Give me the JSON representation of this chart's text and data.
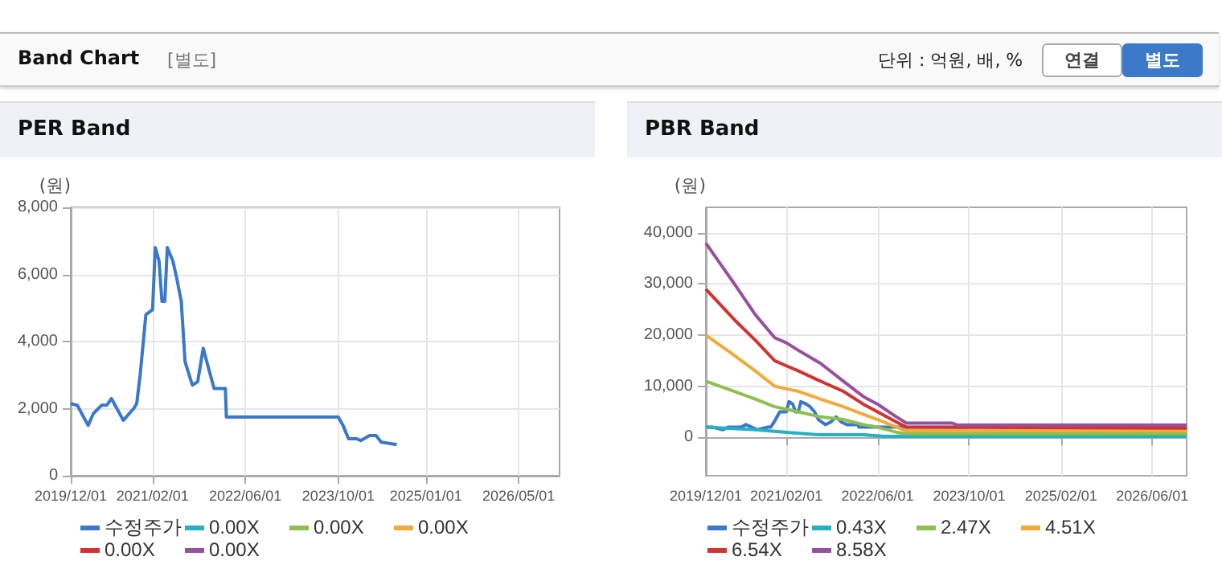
{
  "chart_data": [
    {
      "type": "other",
      "title": "Band Chart",
      "annotations": [
        "[별도]",
        "단위 : 억원, 배, %",
        "연결",
        "별도"
      ]
    },
    {
      "type": "line",
      "title": "PER Band",
      "ylabel": "(원)",
      "xlim": [
        "2019-12-01",
        "2026-12-01"
      ],
      "xticks": [
        {
          "value": "2019-12-01",
          "label": "2019/12/01"
        },
        {
          "value": "2021-02-01",
          "label": "2021/02/01"
        },
        {
          "value": "2022-06-01",
          "label": "2022/06/01"
        },
        {
          "value": "2023-10-01",
          "label": "2023/10/01"
        },
        {
          "value": "2025-01-01",
          "label": "2025/01/01"
        },
        {
          "value": "2026-05-01",
          "label": "2026/05/01"
        }
      ],
      "ylim": [
        0,
        8000
      ],
      "yticks": [
        0,
        {
          "value": 2000,
          "label": "2,000"
        },
        {
          "value": 4000,
          "label": "4,000"
        },
        {
          "value": 6000,
          "label": "6,000"
        },
        {
          "value": 8000,
          "label": "8,000"
        }
      ],
      "grid": true,
      "legend": "bottom",
      "marker": "none",
      "line_style": "solid",
      "series": [
        {
          "name": "수정주가",
          "color": "#3a78cc",
          "x": [
            "2019-12-01",
            "2020-01-04",
            "2020-03-01",
            "2020-03-28",
            "2020-05-10",
            "2020-06-06",
            "2020-07-01",
            "2020-09-01",
            "2020-10-25",
            "2020-11-10",
            "2020-11-28",
            "2020-12-28",
            "2021-02-01",
            "2021-02-15",
            "2021-03-07",
            "2021-03-22",
            "2021-04-06",
            "2021-04-19",
            "2021-05-18",
            "2021-06-07",
            "2021-07-01",
            "2021-07-21",
            "2021-08-28",
            "2021-09-25",
            "2021-10-24",
            "2021-11-21",
            "2021-12-20",
            "2022-02-17",
            "2022-02-22",
            "2023-10-01",
            "2023-10-25",
            "2023-11-23",
            "2024-01-06",
            "2024-01-26",
            "2024-03-12",
            "2024-04-15",
            "2024-05-12",
            "2024-08-01"
          ],
          "values": [
            2150,
            2100,
            1500,
            1850,
            2100,
            2100,
            2300,
            1650,
            2000,
            2150,
            3000,
            4800,
            4950,
            6800,
            6400,
            5200,
            5200,
            6800,
            6400,
            5900,
            5200,
            3400,
            2700,
            2800,
            3800,
            3200,
            2600,
            2600,
            1750,
            1750,
            1500,
            1100,
            1100,
            1050,
            1200,
            1200,
            1000,
            930
          ]
        },
        {
          "name": "0.00X",
          "color": "#26b0c0"
        },
        {
          "name": "0.00X",
          "color": "#8ebf4f"
        },
        {
          "name": "0.00X",
          "color": "#f2aa3a"
        },
        {
          "name": "0.00X",
          "color": "#d1332f"
        },
        {
          "name": "0.00X",
          "color": "#9a4f9e"
        }
      ]
    },
    {
      "type": "line",
      "title": "PBR Band",
      "ylabel": "(원)",
      "xlim": [
        "2019-12-01",
        "2026-12-01"
      ],
      "xticks": [
        {
          "value": "2019-12-01",
          "label": "2019/12/01"
        },
        {
          "value": "2021-02-01",
          "label": "2021/02/01"
        },
        {
          "value": "2022-06-01",
          "label": "2022/06/01"
        },
        {
          "value": "2023-10-01",
          "label": "2023/10/01"
        },
        {
          "value": "2025-02-01",
          "label": "2025/02/01"
        },
        {
          "value": "2026-06-01",
          "label": "2026/06/01"
        }
      ],
      "ylim": [
        -7500,
        45000
      ],
      "yticks": [
        0,
        {
          "value": 10000,
          "label": "10,000"
        },
        {
          "value": 20000,
          "label": "20,000"
        },
        {
          "value": 30000,
          "label": "30,000"
        },
        {
          "value": 40000,
          "label": "40,000"
        }
      ],
      "grid": true,
      "legend": "bottom",
      "marker": "none",
      "line_style": "solid",
      "series": [
        {
          "name": "수정주가",
          "color": "#3a78cc",
          "x": [
            "2019-12-01",
            "2020-01-04",
            "2020-03-01",
            "2020-03-28",
            "2020-05-10",
            "2020-06-06",
            "2020-07-01",
            "2020-09-01",
            "2020-10-25",
            "2020-11-10",
            "2020-11-28",
            "2020-12-28",
            "2021-02-01",
            "2021-02-15",
            "2021-03-07",
            "2021-03-22",
            "2021-04-06",
            "2021-04-19",
            "2021-05-18",
            "2021-06-07",
            "2021-07-01",
            "2021-07-21",
            "2021-08-28",
            "2021-09-25",
            "2021-10-24",
            "2021-11-21",
            "2021-12-20",
            "2022-02-17",
            "2022-02-22",
            "2023-10-01"
          ],
          "values": [
            2000,
            2000,
            1500,
            2000,
            2000,
            2000,
            2500,
            1500,
            2000,
            2000,
            3000,
            5000,
            5000,
            7000,
            6500,
            5000,
            5000,
            7000,
            6500,
            6000,
            5000,
            3500,
            2500,
            3000,
            4000,
            3000,
            2500,
            2500,
            2000,
            2000
          ]
        },
        {
          "name": "0.43X",
          "color": "#26b0c0",
          "x": [
            "2019-12-01",
            "2020-08-20",
            "2021-02-01",
            "2021-08-01",
            "2022-03-17",
            "2022-07-10",
            "2026-12-01"
          ],
          "values": [
            2000,
            1500,
            1000,
            500,
            500,
            200,
            200
          ]
        },
        {
          "name": "2.47X",
          "color": "#8ebf4f",
          "x": [
            "2019-12-01",
            "2020-05-01",
            "2020-08-20",
            "2020-12-01",
            "2021-02-01",
            "2021-04-07",
            "2021-08-01",
            "2021-12-01",
            "2022-03-17",
            "2022-06-01",
            "2022-09-10",
            "2022-11-01",
            "2026-12-01"
          ],
          "values": [
            11000,
            9000,
            7500,
            6000,
            5500,
            5000,
            4000,
            3500,
            2500,
            2000,
            1000,
            700,
            700
          ]
        },
        {
          "name": "4.51X",
          "color": "#f2aa3a",
          "x": [
            "2019-12-01",
            "2020-05-01",
            "2020-08-20",
            "2020-12-01",
            "2021-02-01",
            "2021-04-07",
            "2021-08-01",
            "2021-12-01",
            "2022-03-17",
            "2022-06-01",
            "2022-09-10",
            "2022-11-01",
            "2026-12-01"
          ],
          "values": [
            20000,
            16000,
            13000,
            10000,
            9500,
            9000,
            7500,
            6000,
            4500,
            3500,
            2000,
            1300,
            1300
          ]
        },
        {
          "name": "6.54X",
          "color": "#d1332f",
          "x": [
            "2019-12-01",
            "2020-05-01",
            "2020-08-20",
            "2020-12-01",
            "2021-02-01",
            "2021-04-07",
            "2021-08-01",
            "2021-12-01",
            "2022-03-17",
            "2022-06-01",
            "2022-09-10",
            "2022-11-01",
            "2026-12-01"
          ],
          "values": [
            29000,
            23000,
            19000,
            15000,
            14000,
            13000,
            11000,
            9000,
            6500,
            5000,
            3000,
            2000,
            1800
          ]
        },
        {
          "name": "8.58X",
          "color": "#9a4f9e",
          "x": [
            "2019-12-01",
            "2020-05-01",
            "2020-08-20",
            "2020-12-01",
            "2021-02-01",
            "2021-04-07",
            "2021-08-01",
            "2021-12-01",
            "2022-03-17",
            "2022-06-01",
            "2022-09-10",
            "2022-11-01",
            "2023-07-01",
            "2023-08-01",
            "2026-12-01"
          ],
          "values": [
            38000,
            30000,
            24000,
            19500,
            18500,
            17000,
            14500,
            11000,
            8000,
            6500,
            4000,
            2800,
            2800,
            2400,
            2400
          ]
        }
      ]
    }
  ]
}
